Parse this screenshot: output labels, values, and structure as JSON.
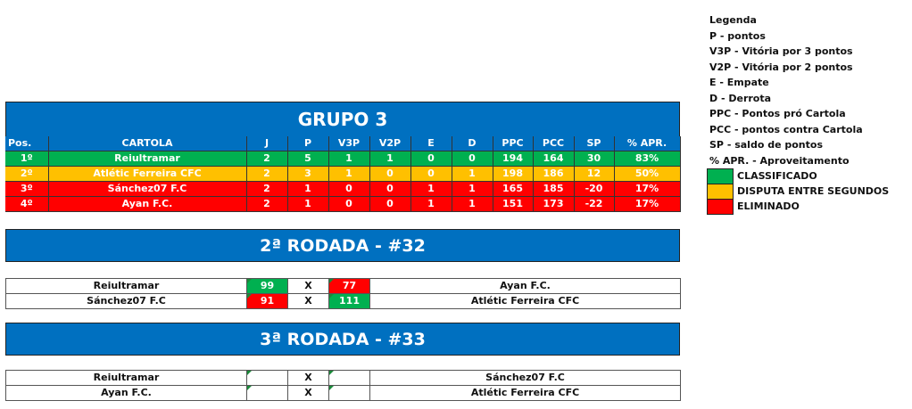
{
  "legend": {
    "title": "Legenda",
    "items": [
      "P - pontos",
      "V3P - Vitória por 3 pontos",
      "V2P - Vitória por 2 pontos",
      "E - Empate",
      "D - Derrota",
      "PPC - Pontos pró Cartola",
      "PCC - pontos contra Cartola",
      "SP - saldo de pontos",
      "% APR. - Aproveitamento"
    ],
    "status": [
      {
        "label": "CLASSIFICADO",
        "color": "#00B050"
      },
      {
        "label": "DISPUTA ENTRE SEGUNDOS",
        "color": "#FFC000"
      },
      {
        "label": "ELIMINADO",
        "color": "#FF0000"
      }
    ]
  },
  "group": {
    "title": "GRUPO 3",
    "headers": [
      "Pos.",
      "CARTOLA",
      "J",
      "P",
      "V3P",
      "V2P",
      "E",
      "D",
      "PPC",
      "PCC",
      "SP",
      "% APR."
    ],
    "rows": [
      [
        "1º",
        "Reiultramar",
        "2",
        "5",
        "1",
        "1",
        "0",
        "0",
        "194",
        "164",
        "30",
        "83%"
      ],
      [
        "2º",
        "Atlétic Ferreira CFC",
        "2",
        "3",
        "1",
        "0",
        "0",
        "1",
        "198",
        "186",
        "12",
        "50%"
      ],
      [
        "3º",
        "Sánchez07 F.C",
        "2",
        "1",
        "0",
        "0",
        "1",
        "1",
        "165",
        "185",
        "-20",
        "17%"
      ],
      [
        "4º",
        "Ayan F.C.",
        "2",
        "1",
        "0",
        "0",
        "1",
        "1",
        "151",
        "173",
        "-22",
        "17%"
      ]
    ]
  },
  "round2": {
    "title": "2ª RODADA - #32",
    "matches": [
      {
        "home": "Reiultramar",
        "home_score": "99",
        "x": "X",
        "away_score": "77",
        "away": "Ayan F.C."
      },
      {
        "home": "Sánchez07 F.C",
        "home_score": "91",
        "x": "X",
        "away_score": "111",
        "away": "Atlétic Ferreira CFC"
      }
    ]
  },
  "round3": {
    "title": "3ª RODADA - #33",
    "matches": [
      {
        "home": "Reiultramar",
        "home_score": "",
        "x": "X",
        "away_score": "",
        "away": "Sánchez07 F.C"
      },
      {
        "home": "Ayan F.C.",
        "home_score": "",
        "x": "X",
        "away_score": "",
        "away": "Atlétic Ferreira CFC"
      }
    ]
  }
}
